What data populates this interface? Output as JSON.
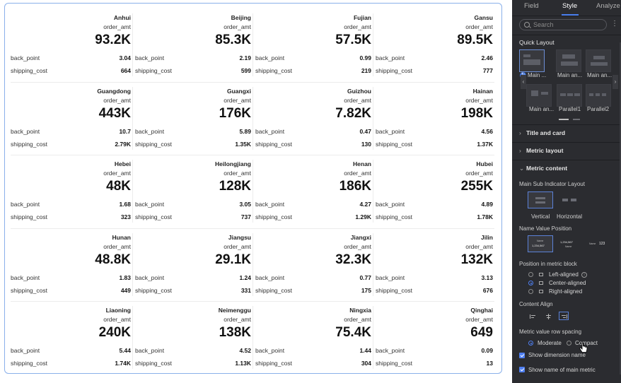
{
  "cards": [
    {
      "region": "Anhui",
      "metric": "order_amt",
      "value": "93.2K",
      "back_point": "3.04",
      "shipping_cost": "664"
    },
    {
      "region": "Beijing",
      "metric": "order_amt",
      "value": "85.3K",
      "back_point": "2.19",
      "shipping_cost": "599"
    },
    {
      "region": "Fujian",
      "metric": "order_amt",
      "value": "57.5K",
      "back_point": "0.99",
      "shipping_cost": "219"
    },
    {
      "region": "Gansu",
      "metric": "order_amt",
      "value": "89.5K",
      "back_point": "2.46",
      "shipping_cost": "777"
    },
    {
      "region": "Guangdong",
      "metric": "order_amt",
      "value": "443K",
      "back_point": "10.7",
      "shipping_cost": "2.79K"
    },
    {
      "region": "Guangxi",
      "metric": "order_amt",
      "value": "176K",
      "back_point": "5.89",
      "shipping_cost": "1.35K"
    },
    {
      "region": "Guizhou",
      "metric": "order_amt",
      "value": "7.82K",
      "back_point": "0.47",
      "shipping_cost": "130"
    },
    {
      "region": "Hainan",
      "metric": "order_amt",
      "value": "198K",
      "back_point": "4.56",
      "shipping_cost": "1.37K"
    },
    {
      "region": "Hebei",
      "metric": "order_amt",
      "value": "48K",
      "back_point": "1.68",
      "shipping_cost": "323"
    },
    {
      "region": "Heilongjiang",
      "metric": "order_amt",
      "value": "128K",
      "back_point": "3.05",
      "shipping_cost": "737"
    },
    {
      "region": "Henan",
      "metric": "order_amt",
      "value": "186K",
      "back_point": "4.27",
      "shipping_cost": "1.29K"
    },
    {
      "region": "Hubei",
      "metric": "order_amt",
      "value": "255K",
      "back_point": "4.89",
      "shipping_cost": "1.78K"
    },
    {
      "region": "Hunan",
      "metric": "order_amt",
      "value": "48.8K",
      "back_point": "1.83",
      "shipping_cost": "449"
    },
    {
      "region": "Jiangsu",
      "metric": "order_amt",
      "value": "29.1K",
      "back_point": "1.24",
      "shipping_cost": "331"
    },
    {
      "region": "Jiangxi",
      "metric": "order_amt",
      "value": "32.3K",
      "back_point": "0.77",
      "shipping_cost": "175"
    },
    {
      "region": "Jilin",
      "metric": "order_amt",
      "value": "132K",
      "back_point": "3.13",
      "shipping_cost": "676"
    },
    {
      "region": "Liaoning",
      "metric": "order_amt",
      "value": "240K",
      "back_point": "5.44",
      "shipping_cost": "1.74K"
    },
    {
      "region": "Neimenggu",
      "metric": "order_amt",
      "value": "138K",
      "back_point": "4.52",
      "shipping_cost": "1.13K"
    },
    {
      "region": "Ningxia",
      "metric": "order_amt",
      "value": "75.4K",
      "back_point": "1.44",
      "shipping_cost": "304"
    },
    {
      "region": "Qinghai",
      "metric": "order_amt",
      "value": "649",
      "back_point": "0.09",
      "shipping_cost": "13"
    }
  ],
  "sub_labels": {
    "back_point": "back_point",
    "shipping_cost": "shipping_cost"
  },
  "panel": {
    "tabs": [
      "Field",
      "Style",
      "Analyze"
    ],
    "active_tab": "Style",
    "search_placeholder": "Search",
    "quick_layout": {
      "title": "Quick Layout",
      "items": [
        "Main ...",
        "Main an...",
        "Main an...",
        "Main an...",
        "Parallel1",
        "Parallel2"
      ]
    },
    "sections": {
      "title_card": "Title and card",
      "metric_layout": "Metric layout",
      "metric_content": "Metric content"
    },
    "main_sub_layout": {
      "label": "Main Sub Indicator Layout",
      "options": [
        "Vertical",
        "Horizontal"
      ],
      "selected": "Vertical"
    },
    "name_value_position": {
      "label": "Name Value Position",
      "sample_name": "Name",
      "sample_value": "1,234,567",
      "sample_inline": "123"
    },
    "position_in_block": {
      "label": "Position in metric block",
      "options": [
        "Left-aligned",
        "Center-aligned",
        "Right-aligned"
      ],
      "selected": "Center-aligned"
    },
    "content_align": {
      "label": "Content Align"
    },
    "row_spacing": {
      "label": "Metric value row spacing",
      "options": [
        "Moderate",
        "Compact"
      ],
      "selected": "Moderate"
    },
    "checkboxes": [
      "Show dimension name",
      "Show name of main metric"
    ]
  },
  "colors": {
    "accent": "#4f7ff0",
    "panel_bg": "#2b2c30",
    "card_border": "#8ab0ea"
  }
}
